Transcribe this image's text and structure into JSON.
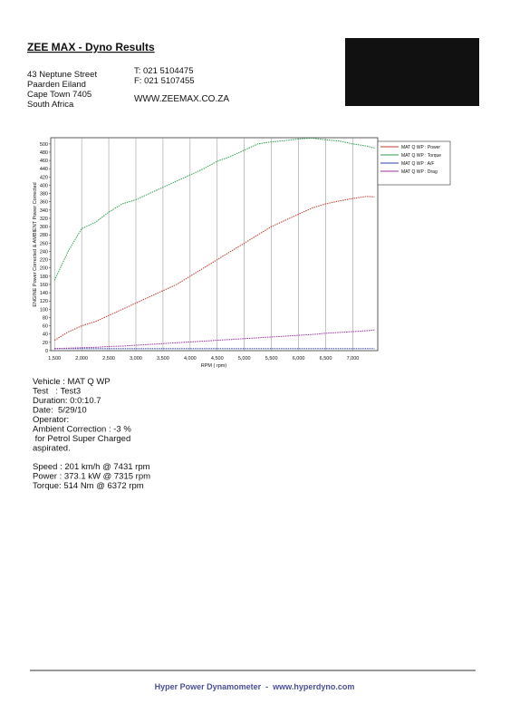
{
  "header": {
    "title": "ZEE MAX - Dyno Results",
    "address": [
      "43 Neptune Street",
      "Paarden Eiland",
      "Cape Town 7405",
      "South Africa"
    ],
    "contacts": [
      "T: 021 5104475",
      "F: 021 5107455"
    ],
    "website": "WWW.ZEEMAX.CO.ZA"
  },
  "chart_data": {
    "type": "line",
    "y_label": "ENGINE Power Corrected & AMBIENT Power Corrected",
    "x_label": "RPM ( rpm)",
    "x": [
      1500,
      1750,
      2000,
      2250,
      2500,
      2750,
      3000,
      3250,
      3500,
      3750,
      4000,
      4250,
      4500,
      4750,
      5000,
      5250,
      5500,
      5750,
      6000,
      6250,
      6500,
      6750,
      7000,
      7250,
      7400
    ],
    "series": [
      {
        "name": "MAT Q WP : Power",
        "color": "#c0392b",
        "values": [
          25,
          45,
          60,
          70,
          85,
          100,
          115,
          130,
          145,
          160,
          180,
          200,
          220,
          240,
          260,
          280,
          300,
          315,
          330,
          345,
          355,
          362,
          368,
          373,
          372
        ]
      },
      {
        "name": "MAT Q WP : Torque",
        "color": "#2e9e4f",
        "values": [
          170,
          240,
          295,
          310,
          335,
          355,
          365,
          380,
          395,
          410,
          425,
          440,
          458,
          470,
          485,
          500,
          505,
          508,
          512,
          514,
          510,
          507,
          500,
          495,
          490
        ]
      },
      {
        "name": "MAT Q WP : A/F",
        "color": "#3040b0",
        "values": [
          5,
          5,
          5,
          5,
          5,
          5,
          5,
          5,
          5,
          5,
          5,
          5,
          5,
          5,
          5,
          5,
          5,
          5,
          5,
          5,
          5,
          5,
          5,
          5,
          5
        ]
      },
      {
        "name": "MAT Q WP : Drag",
        "color": "#9b2fa0",
        "values": [
          5,
          6,
          7,
          8,
          10,
          11,
          13,
          15,
          17,
          19,
          21,
          23,
          25,
          27,
          29,
          31,
          33,
          35,
          37,
          39,
          42,
          44,
          46,
          48,
          50
        ]
      }
    ],
    "xlim": [
      1430,
      7460
    ],
    "xticks": [
      {
        "value": 1500,
        "label": "1,500"
      },
      {
        "value": 2000,
        "label": "2,000"
      },
      {
        "value": 2500,
        "label": "2,500"
      },
      {
        "value": 3000,
        "label": "3,000"
      },
      {
        "value": 3500,
        "label": "3,500"
      },
      {
        "value": 4000,
        "label": "4,000"
      },
      {
        "value": 4500,
        "label": "4,500"
      },
      {
        "value": 5000,
        "label": "5,000"
      },
      {
        "value": 5500,
        "label": "5,500"
      },
      {
        "value": 6000,
        "label": "6,000"
      },
      {
        "value": 6500,
        "label": "6,500"
      },
      {
        "value": 7000,
        "label": "7,000"
      }
    ],
    "ylim": [
      0,
      515
    ],
    "yticks": [
      0,
      20,
      40,
      60,
      80,
      100,
      120,
      140,
      160,
      180,
      200,
      220,
      240,
      260,
      280,
      300,
      320,
      340,
      360,
      380,
      400,
      420,
      440,
      460,
      480,
      500
    ],
    "grid": "x",
    "legend": "right"
  },
  "details": [
    "Vehicle : MAT Q WP",
    "Test   : Test3",
    "Duration: 0:0:10.7",
    "Date:  5/29/10",
    "Operator:",
    "Ambient Correction : -3 %",
    " for Petrol Super Charged",
    "aspirated."
  ],
  "results": [
    "Speed : 201 km/h @ 7431 rpm",
    "Power : 373.1 kW @ 7315 rpm",
    "Torque: 514 Nm @ 6372 rpm"
  ],
  "footer": "Hyper Power Dynamometer  -  www.hyperdyno.com"
}
